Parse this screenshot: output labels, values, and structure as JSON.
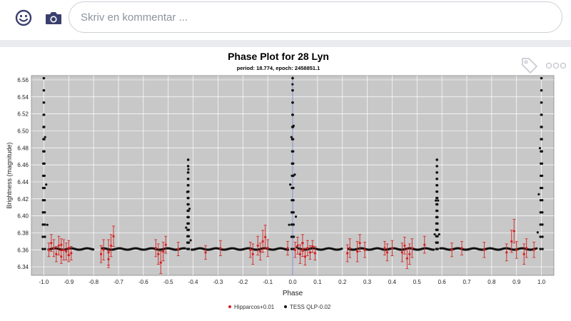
{
  "comment": {
    "placeholder": "Skriv en kommentar ...",
    "emoji_icon": "smiley-icon",
    "camera_icon": "camera-icon"
  },
  "post": {
    "tag_icon": "tag-icon",
    "more_icon": "more-options-icon"
  },
  "colors": {
    "plot_bg": "#c8c8c8",
    "hipparcos": "#d42020",
    "tess": "#111111",
    "grid": "#ffffff"
  },
  "chart_data": {
    "type": "scatter",
    "title": "Phase Plot for 28 Lyn",
    "subtitle": "period: 18.774, epoch: 2458851.1",
    "xlabel": "Phase",
    "ylabel": "Brightness (magnitude)",
    "xlim": [
      -1.05,
      1.05
    ],
    "ylim": [
      6.565,
      6.33
    ],
    "y_inverted": true,
    "grid": true,
    "legend_position": "bottom",
    "xticks": [
      "-1.0",
      "-0.9",
      "-0.8",
      "-0.7",
      "-0.6",
      "-0.5",
      "-0.4",
      "-0.3",
      "-0.2",
      "-0.1",
      "0.0",
      "0.1",
      "0.2",
      "0.3",
      "0.4",
      "0.5",
      "0.6",
      "0.7",
      "0.8",
      "0.9",
      "1.0"
    ],
    "yticks": [
      "6.34",
      "6.36",
      "6.38",
      "6.40",
      "6.42",
      "6.44",
      "6.46",
      "6.48",
      "6.50",
      "6.52",
      "6.54",
      "6.56"
    ],
    "series": [
      {
        "name": "Hipparcos+0.01",
        "style": "error-bar",
        "points": [
          [
            -0.98,
            6.36,
            0.008
          ],
          [
            -0.96,
            6.362,
            0.01
          ],
          [
            -0.95,
            6.355,
            0.009
          ],
          [
            -0.94,
            6.365,
            0.011
          ],
          [
            -0.93,
            6.352,
            0.008
          ],
          [
            -0.92,
            6.36,
            0.012
          ],
          [
            -0.91,
            6.358,
            0.01
          ],
          [
            -0.9,
            6.362,
            0.009
          ],
          [
            -0.89,
            6.356,
            0.008
          ],
          [
            -0.97,
            6.368,
            0.01
          ],
          [
            -0.93,
            6.366,
            0.007
          ],
          [
            -0.9,
            6.354,
            0.008
          ],
          [
            -0.77,
            6.355,
            0.01
          ],
          [
            -0.76,
            6.36,
            0.012
          ],
          [
            -0.74,
            6.357,
            0.015
          ],
          [
            -0.73,
            6.365,
            0.013
          ],
          [
            -0.72,
            6.376,
            0.012
          ],
          [
            -0.74,
            6.349,
            0.01
          ],
          [
            -0.55,
            6.362,
            0.01
          ],
          [
            -0.54,
            6.355,
            0.012
          ],
          [
            -0.53,
            6.345,
            0.013
          ],
          [
            -0.52,
            6.358,
            0.011
          ],
          [
            -0.51,
            6.366,
            0.01
          ],
          [
            -0.46,
            6.361,
            0.008
          ],
          [
            -0.35,
            6.357,
            0.008
          ],
          [
            -0.29,
            6.362,
            0.009
          ],
          [
            -0.17,
            6.36,
            0.009
          ],
          [
            -0.16,
            6.355,
            0.012
          ],
          [
            -0.14,
            6.365,
            0.011
          ],
          [
            -0.13,
            6.358,
            0.01
          ],
          [
            -0.12,
            6.37,
            0.013
          ],
          [
            -0.11,
            6.375,
            0.014
          ],
          [
            -0.1,
            6.362,
            0.01
          ],
          [
            -0.02,
            6.362,
            0.008
          ],
          [
            0.01,
            6.36,
            0.009
          ],
          [
            0.02,
            6.365,
            0.01
          ],
          [
            0.03,
            6.355,
            0.011
          ],
          [
            0.04,
            6.36,
            0.008
          ],
          [
            0.05,
            6.352,
            0.01
          ],
          [
            0.06,
            6.362,
            0.009
          ],
          [
            0.07,
            6.357,
            0.008
          ],
          [
            0.09,
            6.356,
            0.008
          ],
          [
            0.04,
            6.368,
            0.01
          ],
          [
            0.08,
            6.364,
            0.007
          ],
          [
            0.22,
            6.356,
            0.01
          ],
          [
            0.23,
            6.362,
            0.011
          ],
          [
            0.26,
            6.358,
            0.012
          ],
          [
            0.27,
            6.368,
            0.01
          ],
          [
            0.29,
            6.36,
            0.009
          ],
          [
            0.37,
            6.362,
            0.008
          ],
          [
            0.38,
            6.357,
            0.01
          ],
          [
            0.4,
            6.362,
            0.009
          ],
          [
            0.44,
            6.357,
            0.011
          ],
          [
            0.45,
            6.365,
            0.01
          ],
          [
            0.46,
            6.35,
            0.012
          ],
          [
            0.47,
            6.355,
            0.012
          ],
          [
            0.48,
            6.362,
            0.011
          ],
          [
            0.53,
            6.366,
            0.01
          ],
          [
            0.64,
            6.36,
            0.008
          ],
          [
            0.68,
            6.362,
            0.008
          ],
          [
            0.77,
            6.36,
            0.009
          ],
          [
            0.86,
            6.357,
            0.01
          ],
          [
            0.88,
            6.37,
            0.013
          ],
          [
            0.89,
            6.382,
            0.014
          ],
          [
            0.9,
            6.36,
            0.01
          ],
          [
            0.93,
            6.355,
            0.012
          ],
          [
            0.94,
            6.362,
            0.011
          ],
          [
            0.97,
            6.36,
            0.009
          ]
        ]
      },
      {
        "name": "TESS QLP-0.02",
        "style": "dot",
        "baseline": 6.361,
        "x_range": [
          -0.995,
          0.995
        ],
        "eclipses": [
          {
            "center": -0.42,
            "depth": 6.466,
            "half_width": 0.012
          },
          {
            "center": 0.0,
            "depth": 6.562,
            "half_width": 0.018
          },
          {
            "center": 0.58,
            "depth": 6.466,
            "half_width": 0.012
          },
          {
            "center": 1.0,
            "depth": 6.562,
            "half_width": 0.018
          },
          {
            "center": -1.0,
            "depth": 6.562,
            "half_width": 0.018
          }
        ],
        "gaps": [
          [
            -0.8,
            -0.77
          ],
          [
            0.2,
            0.22
          ]
        ]
      }
    ]
  }
}
